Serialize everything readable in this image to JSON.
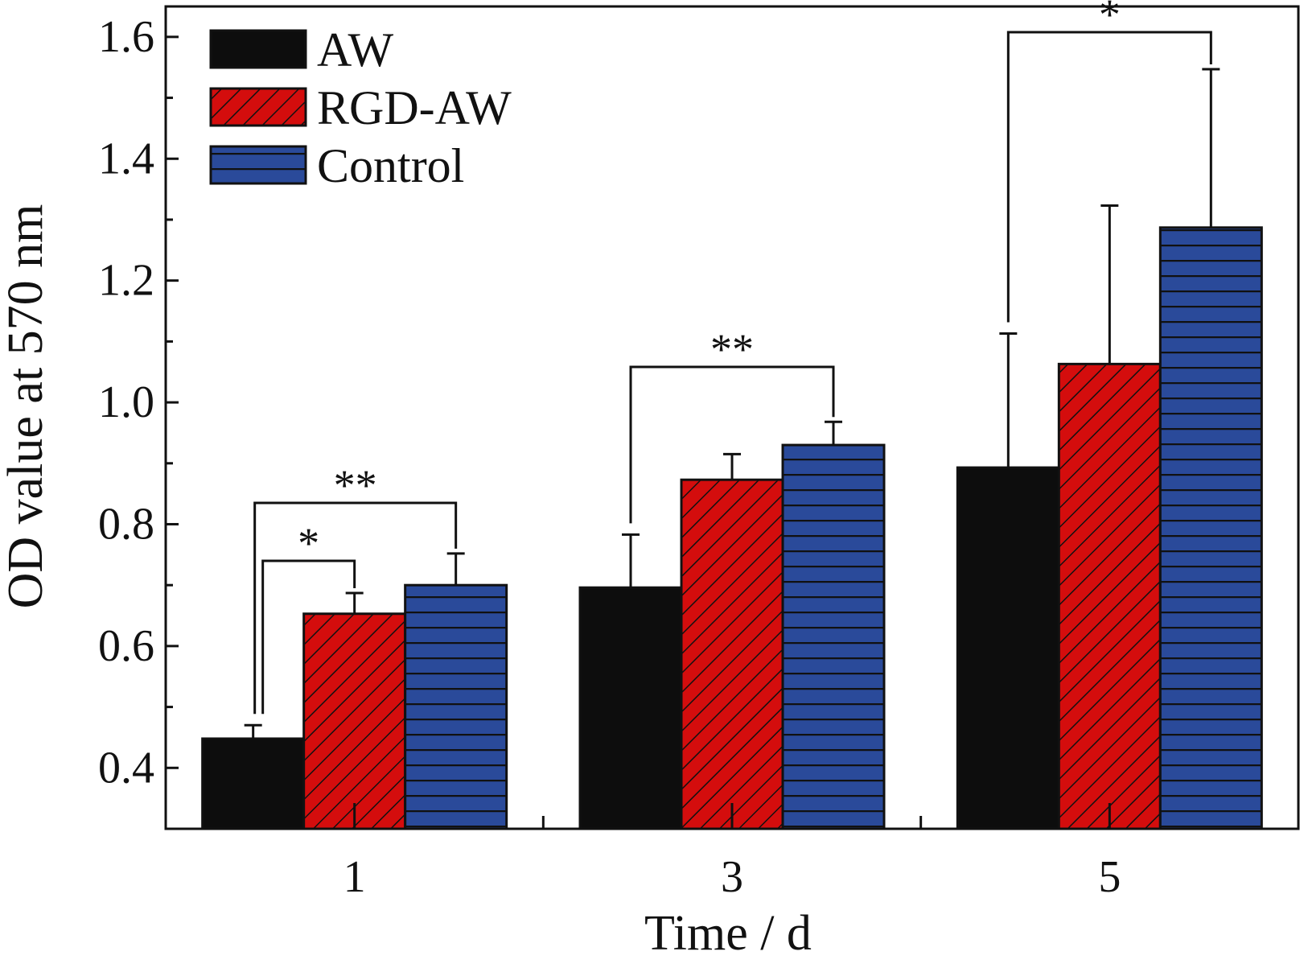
{
  "chart_data": {
    "type": "bar",
    "categories": [
      "1",
      "3",
      "5"
    ],
    "xlabel": "Time / d",
    "ylabel": "OD value at 570 nm",
    "ylim": [
      0.3,
      1.65
    ],
    "yticks": [
      "0.4",
      "0.6",
      "0.8",
      "1.0",
      "1.2",
      "1.4",
      "1.6"
    ],
    "series": [
      {
        "name": "AW",
        "values": [
          0.448,
          0.696,
          0.893
        ],
        "errors": [
          0.022,
          0.087,
          0.22
        ],
        "color": "#0d0d0d",
        "pattern": "solid"
      },
      {
        "name": "RGD-AW",
        "values": [
          0.653,
          0.873,
          1.063
        ],
        "errors": [
          0.034,
          0.042,
          0.26
        ],
        "color": "#d40d0d",
        "pattern": "diagonal"
      },
      {
        "name": "Control",
        "values": [
          0.7,
          0.93,
          1.287
        ],
        "errors": [
          0.052,
          0.038,
          0.26
        ],
        "color": "#2a4a9a",
        "pattern": "horizontal"
      }
    ],
    "legend": {
      "position": "top-left"
    },
    "significance": [
      {
        "category": "1",
        "from": "AW",
        "to": "RGD-AW",
        "label": "*"
      },
      {
        "category": "1",
        "from": "AW",
        "to": "Control",
        "label": "**"
      },
      {
        "category": "3",
        "from": "AW",
        "to": "Control",
        "label": "**"
      },
      {
        "category": "5",
        "from": "AW",
        "to": "Control",
        "label": "*"
      }
    ]
  }
}
